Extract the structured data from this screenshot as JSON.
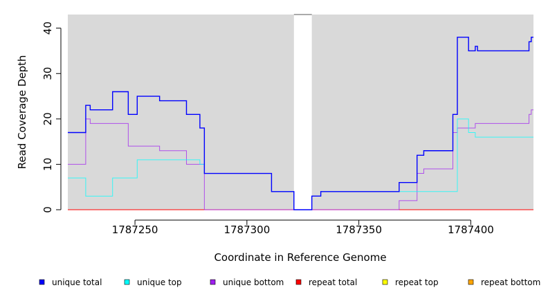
{
  "chart_data": {
    "type": "line",
    "step": true,
    "xlabel": "Coordinate in Reference Genome",
    "ylabel": "Read Coverage Depth",
    "xlim": [
      1787220,
      1787428
    ],
    "ylim": [
      0,
      43
    ],
    "x_ticks": [
      1787250,
      1787300,
      1787350,
      1787400
    ],
    "y_ticks": [
      0,
      10,
      20,
      30,
      40
    ],
    "background": "#d9d9d9",
    "gap_region": [
      1787321,
      1787329
    ],
    "legend_position": "bottom",
    "series": [
      {
        "name": "unique total",
        "color": "#0000ff",
        "x": [
          1787220,
          1787228,
          1787230,
          1787240,
          1787247,
          1787251,
          1787261,
          1787273,
          1787279,
          1787281,
          1787311,
          1787321,
          1787329,
          1787333,
          1787368,
          1787376,
          1787379,
          1787392,
          1787394,
          1787399,
          1787402,
          1787403,
          1787426,
          1787427,
          1787428
        ],
        "y": [
          17,
          23,
          22,
          26,
          21,
          25,
          24,
          21,
          18,
          8,
          4,
          0,
          3,
          4,
          6,
          12,
          13,
          21,
          38,
          35,
          36,
          35,
          37,
          38,
          38
        ]
      },
      {
        "name": "unique top",
        "color": "#00ffff",
        "x": [
          1787220,
          1787228,
          1787240,
          1787251,
          1787279,
          1787281,
          1787311,
          1787321,
          1787329,
          1787333,
          1787394,
          1787399,
          1787402,
          1787428
        ],
        "y": [
          7,
          3,
          7,
          11,
          10,
          8,
          4,
          0,
          3,
          4,
          20,
          17,
          16,
          16
        ]
      },
      {
        "name": "unique bottom",
        "color": "#a020f0",
        "x": [
          1787220,
          1787228,
          1787230,
          1787247,
          1787261,
          1787273,
          1787281,
          1787368,
          1787376,
          1787379,
          1787392,
          1787394,
          1787402,
          1787426,
          1787427,
          1787428
        ],
        "y": [
          10,
          20,
          19,
          14,
          13,
          10,
          0,
          2,
          8,
          9,
          17,
          18,
          19,
          21,
          22,
          22
        ]
      },
      {
        "name": "repeat total",
        "color": "#ff0000",
        "x": [
          1787220,
          1787428
        ],
        "y": [
          0,
          0
        ]
      },
      {
        "name": "repeat top",
        "color": "#ffff00",
        "x": [
          1787220,
          1787428
        ],
        "y": [
          0,
          0
        ]
      },
      {
        "name": "repeat bottom",
        "color": "#ffa500",
        "x": [
          1787220,
          1787428
        ],
        "y": [
          0,
          0
        ]
      }
    ]
  }
}
